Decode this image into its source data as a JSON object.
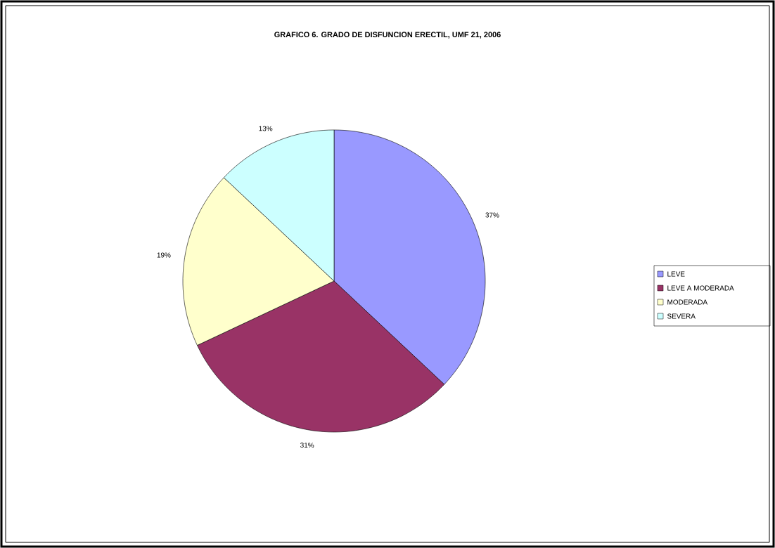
{
  "chart_data": {
    "type": "pie",
    "title": "GRAFICO 6. GRADO DE DISFUNCION ERECTIL, UMF 21, 2006",
    "categories": [
      "LEVE",
      "LEVE A MODERADA",
      "MODERADA",
      "SEVERA"
    ],
    "values": [
      37,
      31,
      19,
      13
    ],
    "value_labels": [
      "37%",
      "31%",
      "19%",
      "13%"
    ],
    "colors": [
      "#9999ff",
      "#993366",
      "#ffffcc",
      "#ccffff"
    ],
    "legend": "right"
  }
}
